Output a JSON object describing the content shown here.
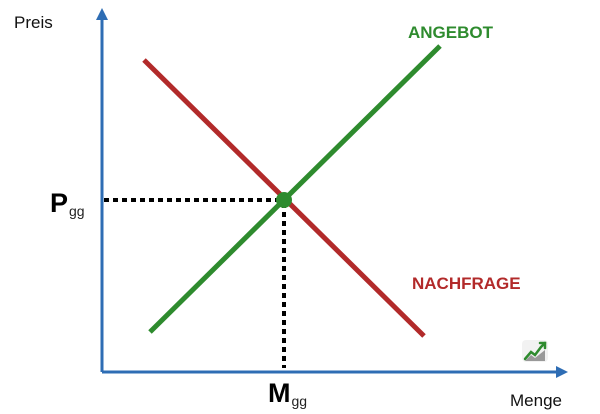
{
  "axes": {
    "y_label": "Preis",
    "x_label": "Menge",
    "color": "#2e6db4"
  },
  "supply": {
    "label": "ANGEBOT",
    "color": "#2e8b2e"
  },
  "demand": {
    "label": "NACHFRAGE",
    "color": "#b22a2a"
  },
  "equilibrium": {
    "price_main": "P",
    "price_sub": "gg",
    "quantity_main": "M",
    "quantity_sub": "gg",
    "marker_color": "#2e8b2e",
    "guide_color": "#000000"
  },
  "logo": {
    "icon": "trend-chart-icon",
    "colors": [
      "#2e8b2e",
      "#999999"
    ]
  }
}
